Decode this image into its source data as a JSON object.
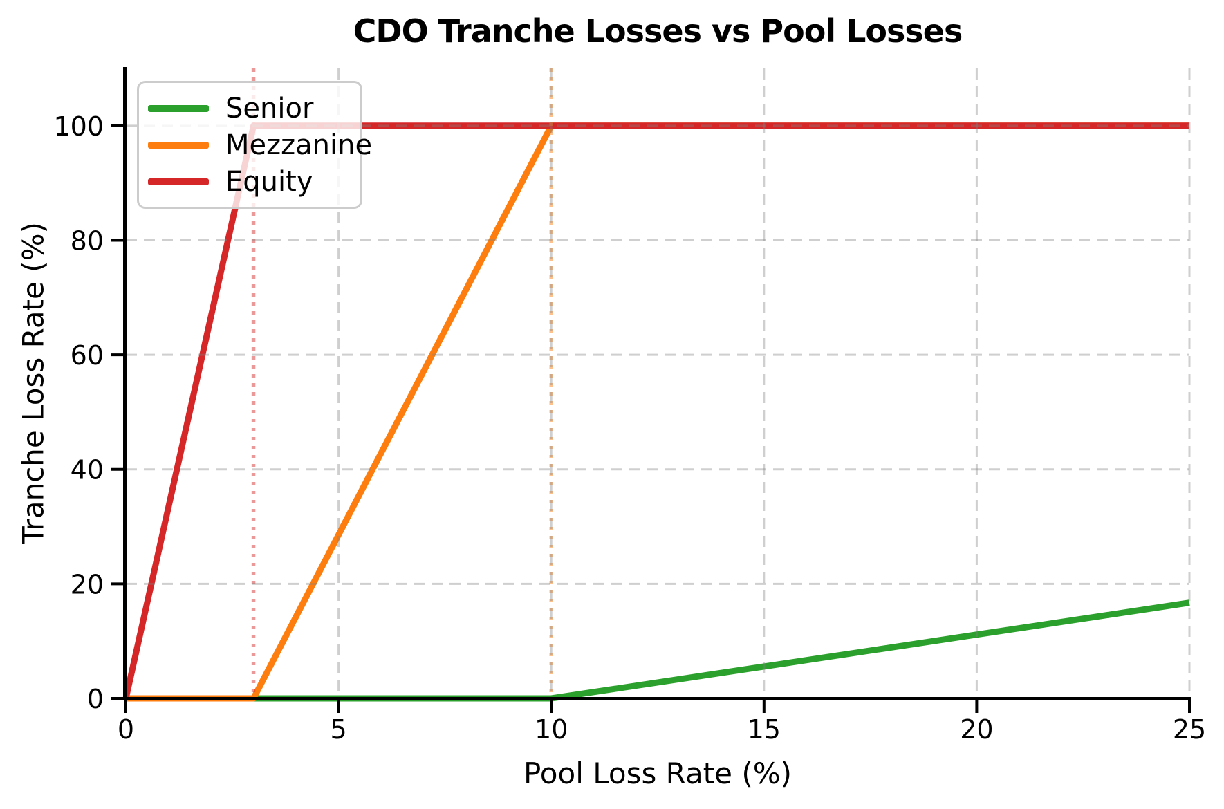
{
  "chart_data": {
    "type": "line",
    "title": "CDO Tranche Losses vs Pool Losses",
    "xlabel": "Pool Loss Rate (%)",
    "ylabel": "Tranche Loss Rate (%)",
    "xlim": [
      0,
      25
    ],
    "ylim": [
      0,
      110
    ],
    "x_ticks": [
      0,
      5,
      10,
      15,
      20,
      25
    ],
    "y_ticks": [
      0,
      20,
      40,
      60,
      80,
      100
    ],
    "grid": true,
    "legend_position": "upper-left",
    "series": [
      {
        "name": "Senior",
        "color": "#2ca02c",
        "points": [
          [
            0,
            0
          ],
          [
            10,
            0
          ],
          [
            25,
            16.7
          ]
        ]
      },
      {
        "name": "Mezzanine",
        "color": "#fd7e0e",
        "points": [
          [
            0,
            0
          ],
          [
            3,
            0
          ],
          [
            10,
            100
          ],
          [
            25,
            100
          ]
        ]
      },
      {
        "name": "Equity",
        "color": "#d62728",
        "points": [
          [
            0,
            0
          ],
          [
            3,
            100
          ],
          [
            25,
            100
          ]
        ]
      }
    ],
    "reference_lines": [
      {
        "axis": "x",
        "value": 3,
        "color": "#d62728",
        "style": "dotted"
      },
      {
        "axis": "x",
        "value": 10,
        "color": "#fd7e0e",
        "style": "dotted"
      }
    ],
    "colors": {
      "grid": "#828282",
      "axis": "#000000",
      "background": "#ffffff"
    }
  }
}
